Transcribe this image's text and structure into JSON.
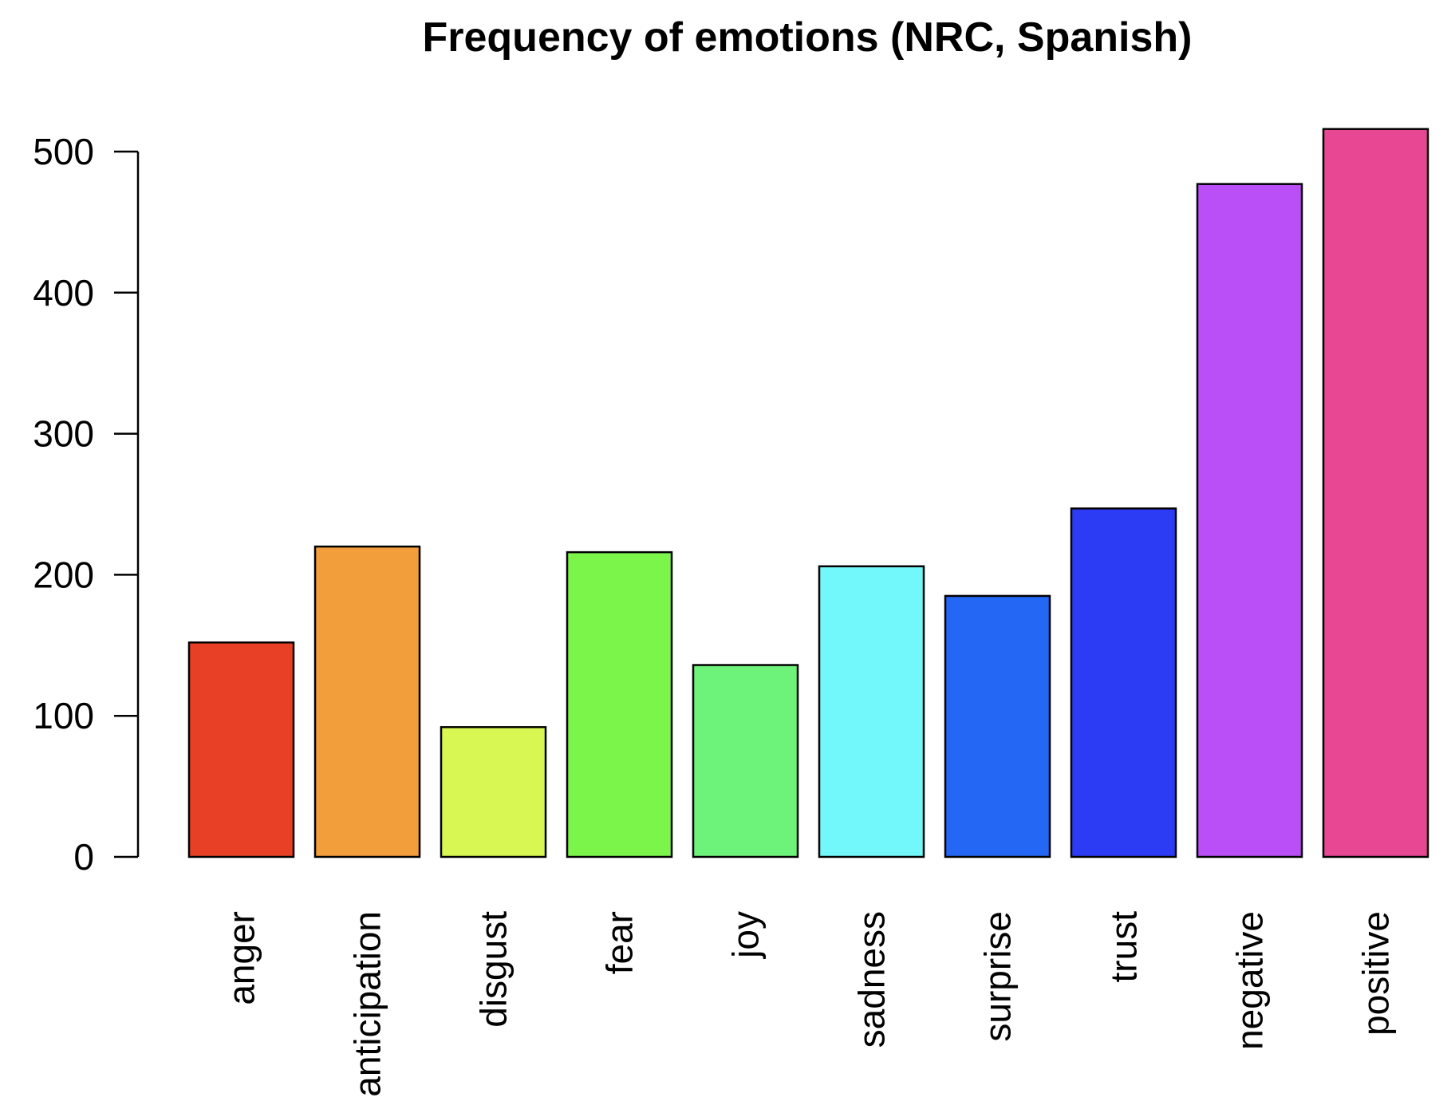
{
  "chart_data": {
    "type": "bar",
    "title": "Frequency of emotions (NRC, Spanish)",
    "xlabel": "",
    "ylabel": "",
    "ylim": [
      0,
      500
    ],
    "yticks": [
      0,
      100,
      200,
      300,
      400,
      500
    ],
    "ytick_labels": [
      "0",
      "100",
      "200",
      "300",
      "400",
      "500"
    ],
    "categories": [
      "anger",
      "anticipation",
      "disgust",
      "fear",
      "joy",
      "sadness",
      "surprise",
      "trust",
      "negative",
      "positive"
    ],
    "values": [
      152,
      220,
      92,
      216,
      136,
      206,
      185,
      247,
      477,
      516
    ],
    "colors": [
      "#E84026",
      "#F29E3A",
      "#D8F752",
      "#7CF54A",
      "#6DF27A",
      "#72F7FA",
      "#2567F5",
      "#2C3CF5",
      "#BB4FF7",
      "#E84793"
    ],
    "grid": false,
    "legend": "none"
  }
}
